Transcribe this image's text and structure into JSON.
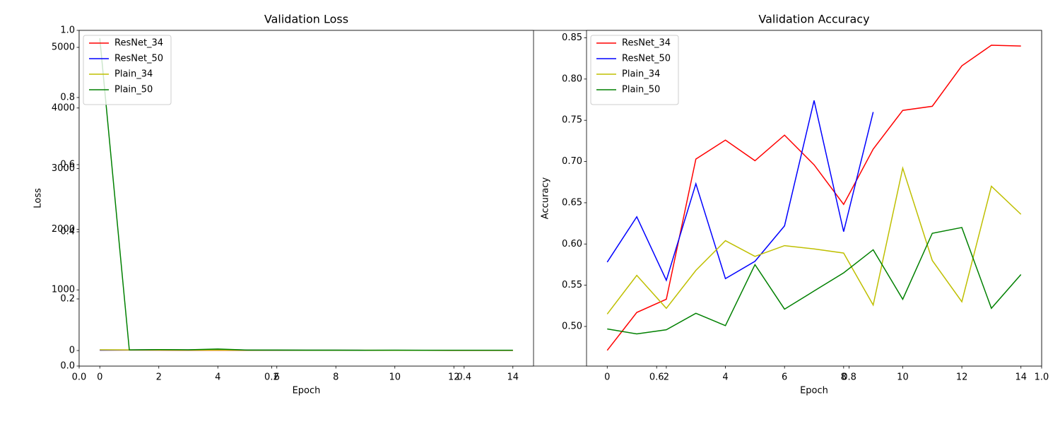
{
  "chart_data": [
    {
      "type": "line",
      "title": "Validation Loss",
      "xlabel": "Epoch",
      "ylabel": "Loss",
      "x": [
        0,
        1,
        2,
        3,
        4,
        5,
        6,
        7,
        8,
        9,
        10,
        11,
        12,
        13,
        14
      ],
      "xlim": [
        -0.7,
        14.7
      ],
      "xticks": [
        0,
        2,
        4,
        6,
        8,
        10,
        12,
        14
      ],
      "ylim": [
        -256,
        5280
      ],
      "yticks": [
        0,
        1000,
        2000,
        3000,
        4000,
        5000
      ],
      "legend": "upper left",
      "series": [
        {
          "name": "ResNet_34",
          "color": "#ff0000",
          "values": [
            8,
            7,
            6,
            5,
            5,
            4,
            4,
            3,
            3,
            3,
            3,
            3,
            2,
            2,
            2
          ]
        },
        {
          "name": "ResNet_50",
          "color": "#0000ff",
          "values": [
            6,
            9,
            14,
            10,
            18,
            7,
            6,
            5,
            5,
            4,
            null,
            null,
            null,
            null,
            null
          ]
        },
        {
          "name": "Plain_34",
          "color": "#bfbf00",
          "values": [
            12,
            10,
            9,
            8,
            8,
            6,
            6,
            5,
            5,
            5,
            4,
            4,
            4,
            4,
            4
          ]
        },
        {
          "name": "Plain_50",
          "color": "#008000",
          "values": [
            5150,
            10,
            15,
            12,
            25,
            8,
            7,
            6,
            6,
            5,
            6,
            5,
            5,
            5,
            5
          ]
        }
      ]
    },
    {
      "type": "line",
      "title": "Validation Accuracy",
      "xlabel": "Epoch",
      "ylabel": "Accuracy",
      "x": [
        0,
        1,
        2,
        3,
        4,
        5,
        6,
        7,
        8,
        9,
        10,
        11,
        12,
        13,
        14
      ],
      "xlim": [
        -0.7,
        14.7
      ],
      "xticks": [
        0,
        2,
        4,
        6,
        8,
        10,
        12,
        14
      ],
      "ylim": [
        0.452,
        0.859
      ],
      "yticks": [
        {
          "value": 0.5,
          "label": "0.50"
        },
        0.55,
        {
          "value": 0.6,
          "label": "0.60"
        },
        0.65,
        {
          "value": 0.7,
          "label": "0.70"
        },
        0.75,
        {
          "value": 0.8,
          "label": "0.80"
        },
        0.85
      ],
      "legend": "upper left",
      "series": [
        {
          "name": "ResNet_34",
          "color": "#ff0000",
          "values": [
            0.471,
            0.517,
            0.533,
            0.703,
            0.726,
            0.701,
            0.732,
            0.696,
            0.648,
            0.715,
            0.762,
            0.767,
            0.816,
            0.841,
            0.84
          ]
        },
        {
          "name": "ResNet_50",
          "color": "#0000ff",
          "values": [
            0.578,
            0.633,
            0.556,
            0.673,
            0.558,
            0.579,
            0.622,
            0.774,
            0.615,
            0.76,
            null,
            null,
            null,
            null,
            null
          ]
        },
        {
          "name": "Plain_34",
          "color": "#bfbf00",
          "values": [
            0.515,
            0.562,
            0.522,
            0.568,
            0.604,
            0.585,
            0.598,
            0.594,
            0.589,
            0.526,
            0.692,
            0.58,
            0.53,
            0.67,
            0.636
          ]
        },
        {
          "name": "Plain_50",
          "color": "#008000",
          "values": [
            0.497,
            0.491,
            0.496,
            0.516,
            0.501,
            0.575,
            0.521,
            0.543,
            0.565,
            0.593,
            0.533,
            0.613,
            0.62,
            0.522,
            0.563
          ]
        }
      ]
    },
    {
      "type": "line",
      "xlim": [
        0,
        1
      ],
      "ylim": [
        0,
        1
      ],
      "xticks": [
        {
          "value": 0,
          "label": "0.0"
        },
        0.2,
        0.4,
        0.6,
        0.8,
        {
          "value": 1,
          "label": "1.0"
        }
      ],
      "yticks": [
        {
          "value": 0,
          "label": "0.0"
        },
        0.2,
        0.4,
        0.6,
        0.8,
        {
          "value": 1,
          "label": "1.0"
        }
      ],
      "series": []
    }
  ]
}
